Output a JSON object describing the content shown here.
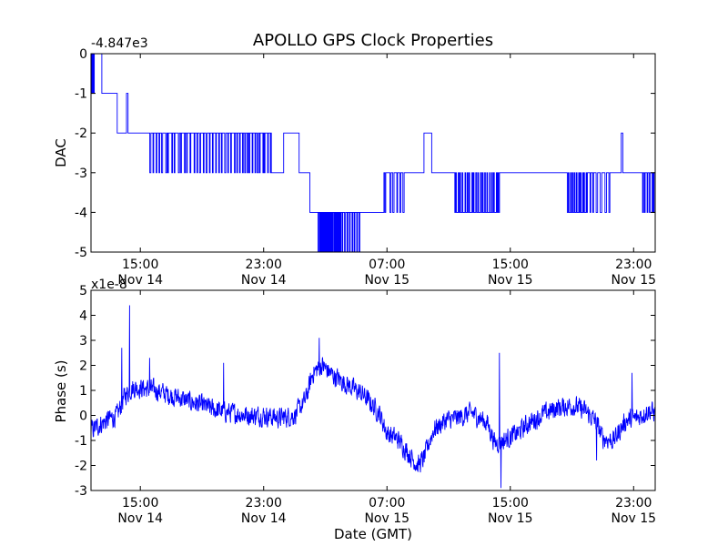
{
  "figure": {
    "title": "APOLLO GPS Clock Properties",
    "xlabel": "Date (GMT)"
  },
  "chart_data": [
    {
      "type": "line",
      "title": "APOLLO GPS Clock Properties",
      "ylabel": "DAC",
      "offset_label": "-4.847e3",
      "ylim": [
        -5,
        0
      ],
      "yticks": [
        0,
        -1,
        -2,
        -3,
        -4,
        -5
      ],
      "xlim_hours": [
        11.8,
        48.4
      ],
      "xticks": [
        {
          "h": 15,
          "time": "15:00",
          "date": "Nov 14"
        },
        {
          "h": 23,
          "time": "23:00",
          "date": "Nov 14"
        },
        {
          "h": 31,
          "time": "07:00",
          "date": "Nov 15"
        },
        {
          "h": 39,
          "time": "15:00",
          "date": "Nov 15"
        },
        {
          "h": 47,
          "time": "23:00",
          "date": "Nov 15"
        }
      ],
      "color": "#0000ff",
      "series": [
        {
          "segments": [
            {
              "x0": 11.8,
              "x1": 12.0,
              "level": -1,
              "flicker_to": 0,
              "flickers": 4
            },
            {
              "x0": 12.0,
              "x1": 12.5,
              "level": 0
            },
            {
              "x0": 12.5,
              "x1": 13.5,
              "level": -1
            },
            {
              "x0": 13.5,
              "x1": 14.1,
              "level": -2
            },
            {
              "x0": 14.1,
              "x1": 14.2,
              "level": -1
            },
            {
              "x0": 14.2,
              "x1": 15.5,
              "level": -2
            },
            {
              "x0": 15.5,
              "x1": 21.2,
              "level": -2,
              "flicker_to": -3,
              "flickers": 28
            },
            {
              "x0": 21.2,
              "x1": 23.5,
              "level": -2,
              "flicker_to": -3,
              "flickers": 14
            },
            {
              "x0": 23.5,
              "x1": 24.3,
              "level": -3
            },
            {
              "x0": 24.3,
              "x1": 25.3,
              "level": -2
            },
            {
              "x0": 25.3,
              "x1": 26.0,
              "level": -3
            },
            {
              "x0": 26.0,
              "x1": 26.5,
              "level": -4
            },
            {
              "x0": 26.5,
              "x1": 28.0,
              "level": -4,
              "flicker_to": -5,
              "flickers": 18
            },
            {
              "x0": 28.0,
              "x1": 29.3,
              "level": -4,
              "flicker_to": -5,
              "flickers": 8
            },
            {
              "x0": 29.3,
              "x1": 30.8,
              "level": -4
            },
            {
              "x0": 30.8,
              "x1": 32.2,
              "level": -3,
              "flicker_to": -4,
              "flickers": 6
            },
            {
              "x0": 32.2,
              "x1": 33.4,
              "level": -3
            },
            {
              "x0": 33.4,
              "x1": 33.9,
              "level": -2
            },
            {
              "x0": 33.9,
              "x1": 35.4,
              "level": -3
            },
            {
              "x0": 35.4,
              "x1": 38.3,
              "level": -4,
              "flicker_to": -3,
              "flickers": 20
            },
            {
              "x0": 38.3,
              "x1": 42.7,
              "level": -3
            },
            {
              "x0": 42.7,
              "x1": 44.0,
              "level": -4,
              "flicker_to": -3,
              "flickers": 10
            },
            {
              "x0": 44.0,
              "x1": 45.5,
              "level": -3,
              "flicker_to": -4,
              "flickers": 6
            },
            {
              "x0": 45.5,
              "x1": 46.2,
              "level": -3
            },
            {
              "x0": 46.2,
              "x1": 46.3,
              "level": -2
            },
            {
              "x0": 46.3,
              "x1": 47.5,
              "level": -3
            },
            {
              "x0": 47.5,
              "x1": 48.4,
              "level": -3,
              "flicker_to": -4,
              "flickers": 6
            }
          ]
        }
      ]
    },
    {
      "type": "line",
      "ylabel": "Phase (s)",
      "offset_label": "x1e-8",
      "ylim": [
        -3,
        5
      ],
      "yticks": [
        5,
        4,
        3,
        2,
        1,
        0,
        -1,
        -2,
        -3
      ],
      "xlim_hours": [
        11.8,
        48.4
      ],
      "xticks": [
        {
          "h": 15,
          "time": "15:00",
          "date": "Nov 14"
        },
        {
          "h": 23,
          "time": "23:00",
          "date": "Nov 14"
        },
        {
          "h": 31,
          "time": "07:00",
          "date": "Nov 15"
        },
        {
          "h": 39,
          "time": "15:00",
          "date": "Nov 15"
        },
        {
          "h": 47,
          "time": "23:00",
          "date": "Nov 15"
        }
      ],
      "color": "#0000ff",
      "series": [
        {
          "trend": [
            [
              11.8,
              -0.6
            ],
            [
              12.3,
              -0.4
            ],
            [
              12.8,
              -0.2
            ],
            [
              13.5,
              0.0
            ],
            [
              14.0,
              0.8
            ],
            [
              14.5,
              1.1
            ],
            [
              15.0,
              1.1
            ],
            [
              16.0,
              1.0
            ],
            [
              17.0,
              0.8
            ],
            [
              18.0,
              0.6
            ],
            [
              19.0,
              0.4
            ],
            [
              20.0,
              0.2
            ],
            [
              21.0,
              0.1
            ],
            [
              22.0,
              0.0
            ],
            [
              23.0,
              0.0
            ],
            [
              24.0,
              -0.1
            ],
            [
              25.0,
              0.0
            ],
            [
              25.7,
              0.6
            ],
            [
              26.2,
              1.7
            ],
            [
              26.8,
              2.0
            ],
            [
              27.5,
              1.6
            ],
            [
              28.5,
              1.2
            ],
            [
              29.5,
              0.8
            ],
            [
              30.5,
              0.1
            ],
            [
              31.0,
              -0.7
            ],
            [
              31.8,
              -1.0
            ],
            [
              32.5,
              -1.6
            ],
            [
              33.0,
              -2.0
            ],
            [
              33.4,
              -1.7
            ],
            [
              34.0,
              -0.6
            ],
            [
              34.8,
              -0.2
            ],
            [
              35.6,
              -0.1
            ],
            [
              36.5,
              0.1
            ],
            [
              37.5,
              -0.3
            ],
            [
              38.0,
              -1.1
            ],
            [
              38.6,
              -1.0
            ],
            [
              39.5,
              -0.7
            ],
            [
              40.0,
              -0.4
            ],
            [
              41.0,
              0.0
            ],
            [
              42.0,
              0.3
            ],
            [
              43.0,
              0.4
            ],
            [
              43.8,
              0.2
            ],
            [
              44.5,
              -0.2
            ],
            [
              45.0,
              -0.9
            ],
            [
              45.7,
              -1.0
            ],
            [
              46.5,
              -0.2
            ],
            [
              47.2,
              -0.1
            ],
            [
              48.0,
              0.2
            ],
            [
              48.4,
              0.1
            ]
          ],
          "noise": 0.55,
          "spikes": [
            {
              "h": 14.3,
              "v": 4.4
            },
            {
              "h": 13.8,
              "v": 2.7
            },
            {
              "h": 15.6,
              "v": 2.3
            },
            {
              "h": 20.4,
              "v": 2.1
            },
            {
              "h": 26.6,
              "v": 3.1
            },
            {
              "h": 31.9,
              "v": -0.9
            },
            {
              "h": 38.3,
              "v": 2.5
            },
            {
              "h": 38.4,
              "v": -2.9
            },
            {
              "h": 44.6,
              "v": -1.8
            },
            {
              "h": 46.9,
              "v": 1.7
            }
          ]
        }
      ]
    }
  ]
}
